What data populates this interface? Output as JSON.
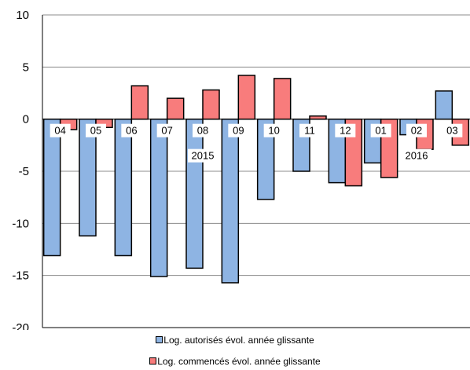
{
  "chart_data": {
    "type": "bar",
    "categories": [
      "04",
      "05",
      "06",
      "07",
      "08",
      "09",
      "10",
      "11",
      "12",
      "01",
      "02",
      "03"
    ],
    "year_labels": [
      {
        "label": "2015",
        "category_index": 4
      },
      {
        "label": "2016",
        "category_index": 10
      }
    ],
    "series": [
      {
        "name": "Log. autorisés évol. année glissante",
        "color": "#8eb4e3",
        "values": [
          -13.1,
          -11.2,
          -13.1,
          -15.1,
          -14.3,
          -15.7,
          -7.7,
          -5.0,
          -6.1,
          -4.2,
          -1.5,
          2.7
        ]
      },
      {
        "name": "Log. commencés évol. année glissante",
        "color": "#f87c7c",
        "values": [
          -1.0,
          -0.8,
          3.2,
          2.0,
          2.8,
          4.2,
          3.9,
          0.3,
          -6.4,
          -5.6,
          -2.9,
          -2.5
        ]
      }
    ],
    "ylim": [
      -20,
      10
    ],
    "yticks": [
      10,
      5,
      0,
      -5,
      -10,
      -15,
      -20
    ],
    "grid": true,
    "legend_position": "bottom"
  }
}
